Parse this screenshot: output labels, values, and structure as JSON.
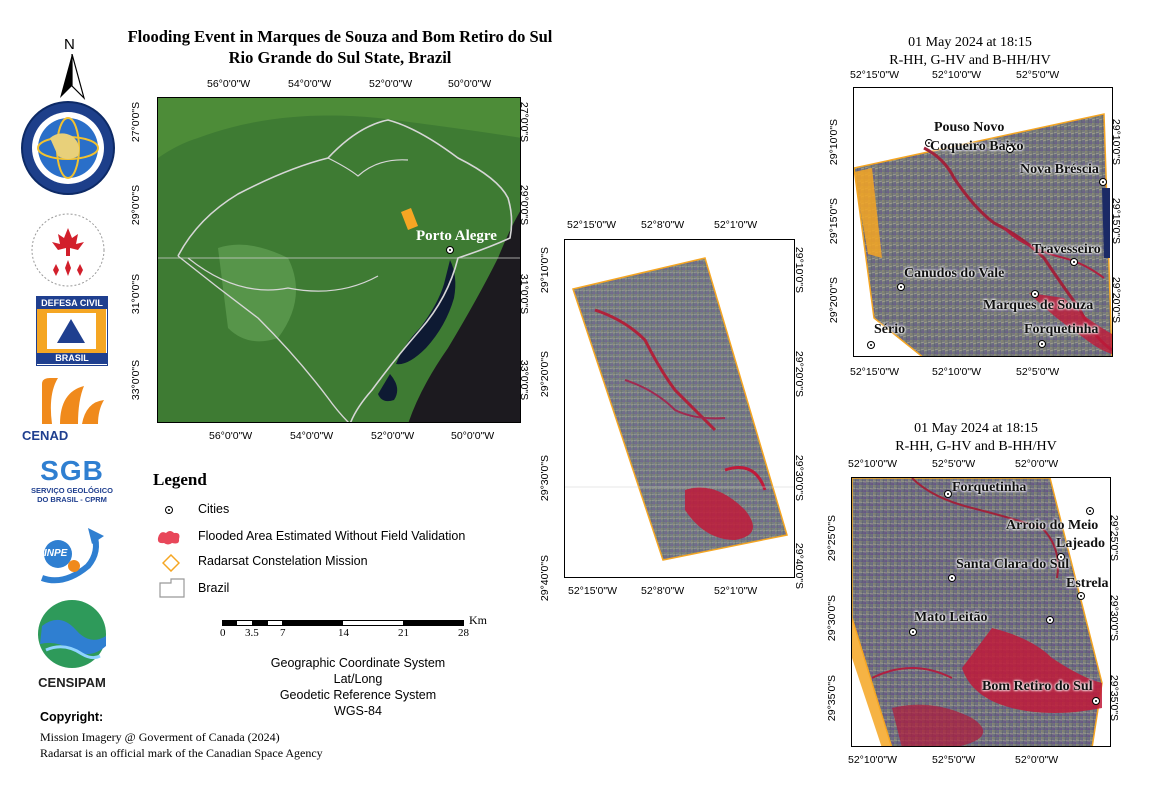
{
  "title": {
    "line1": "Flooding Event in Marques de Souza and Bom Retiro do Sul",
    "line2": "Rio Grande do Sul State, Brazil"
  },
  "north_arrow": {
    "letter": "N"
  },
  "overview_map": {
    "top_ticks": [
      "56°0'0\"W",
      "54°0'0\"W",
      "52°0'0\"W",
      "50°0'0\"W"
    ],
    "bottom_ticks": [
      "56°0'0\"W",
      "54°0'0\"W",
      "52°0'0\"W",
      "50°0'0\"W"
    ],
    "left_ticks": [
      "27°0'0\"S",
      "29°0'0\"S",
      "31°0'0\"S",
      "33°0'0\"S"
    ],
    "right_ticks": [
      "27°0'0\"S",
      "29°0'0\"S",
      "31°0'0\"S",
      "33°0'0\"S"
    ],
    "city_label": "Porto Alegre"
  },
  "middle_map": {
    "top_ticks": [
      "52°15'0\"W",
      "52°8'0\"W",
      "52°1'0\"W"
    ],
    "bottom_ticks": [
      "52°15'0\"W",
      "52°8'0\"W",
      "52°1'0\"W"
    ],
    "left_ticks": [
      "29°10'0\"S",
      "29°20'0\"S",
      "29°30'0\"S",
      "29°40'0\"S"
    ],
    "right_ticks": [
      "29°10'0\"S",
      "29°20'0\"S",
      "29°30'0\"S",
      "29°40'0\"S"
    ]
  },
  "top_right_map": {
    "date": "01 May 2024 at 18:15",
    "bands": "R-HH, G-HV and B-HH/HV",
    "top_ticks": [
      "52°15'0\"W",
      "52°10'0\"W",
      "52°5'0\"W"
    ],
    "bottom_ticks": [
      "52°15'0\"W",
      "52°10'0\"W",
      "52°5'0\"W"
    ],
    "left_ticks": [
      "29°10'0\"S",
      "29°15'0\"S",
      "29°20'0\"S"
    ],
    "right_ticks": [
      "29°10'0\"S",
      "29°15'0\"S",
      "29°20'0\"S"
    ],
    "cities": [
      "Pouso Novo",
      "Coqueiro Baixo",
      "Nova Bréscia",
      "Travesseiro",
      "Canudos do Vale",
      "Marques de Souza",
      "Forquetinha",
      "Sério"
    ]
  },
  "bottom_right_map": {
    "date": "01 May 2024 at 18:15",
    "bands": "R-HH, G-HV and B-HH/HV",
    "top_ticks": [
      "52°10'0\"W",
      "52°5'0\"W",
      "52°0'0\"W"
    ],
    "bottom_ticks": [
      "52°10'0\"W",
      "52°5'0\"W",
      "52°0'0\"W"
    ],
    "left_ticks": [
      "29°25'0\"S",
      "29°30'0\"S",
      "29°35'0\"S"
    ],
    "right_ticks": [
      "29°25'0\"S",
      "29°30'0\"S",
      "29°35'0\"S"
    ],
    "cities": [
      "Forquetinha",
      "Arroio do Meio",
      "Lajeado",
      "Santa Clara do Sul",
      "Estrela",
      "Mato Leitão",
      "Bom Retiro do Sul"
    ]
  },
  "legend": {
    "title": "Legend",
    "items": [
      "Cities",
      "Flooded Area Estimated Without Field Validation",
      "Radarsat Constelation Mission",
      "Brazil"
    ]
  },
  "scale_bar": {
    "unit": "Km",
    "labels": [
      "0",
      "3.5",
      "7",
      "14",
      "21",
      "28"
    ]
  },
  "crs": {
    "line1": "Geographic Coordinate System",
    "line2": "Lat/Long",
    "line3": "Geodetic Reference System",
    "line4": "WGS-84"
  },
  "copyright": {
    "heading": "Copyright:",
    "line1": "Mission Imagery @ Goverment of Canada (2024)",
    "line2": "Radarsat is an official mark of the Canadian Space Agency"
  },
  "logos": {
    "defesa_top": "DEFESA CIVIL",
    "defesa_bottom": "BRASIL",
    "cenad": "CENAD",
    "sgb": "SGB",
    "sgb_sub1": "SERVIÇO GEOLÓGICO",
    "sgb_sub2": "DO BRASIL - CPRM",
    "inpe": "INPE",
    "censipam": "CENSIPAM"
  },
  "colors": {
    "flood": "#e0203a",
    "vegetation": "#3f7a2e",
    "water": "#0f1a33",
    "radar_outline": "#f5a623"
  }
}
